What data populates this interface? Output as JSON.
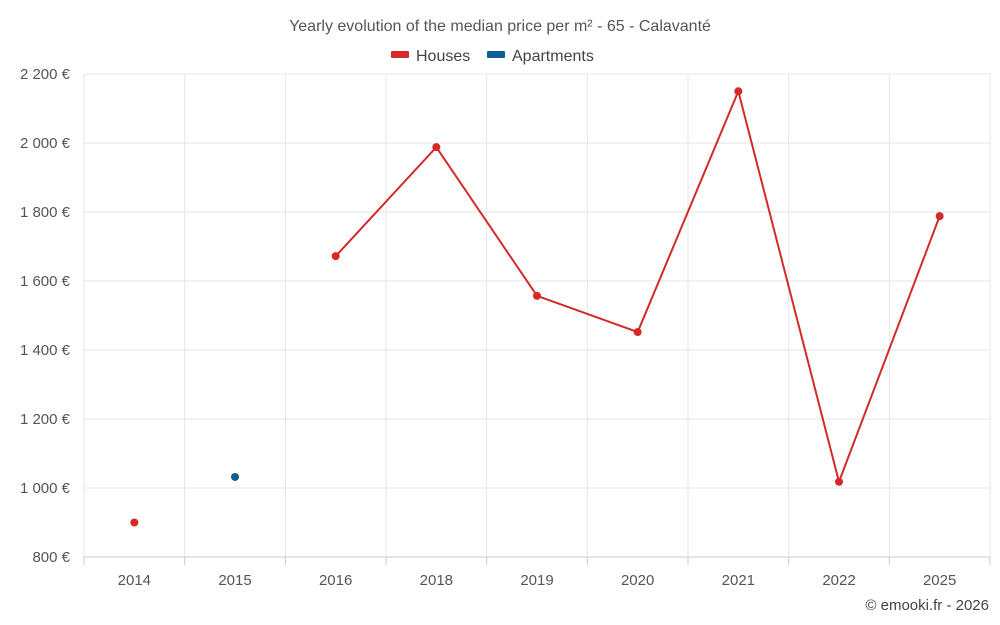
{
  "chart_data": {
    "type": "line",
    "title": "Yearly evolution of the median price per m² - 65 - Calavanté",
    "categories": [
      "2014",
      "2015",
      "2016",
      "2018",
      "2019",
      "2020",
      "2021",
      "2022",
      "2025"
    ],
    "series": [
      {
        "name": "Houses",
        "color": "#d42a2a",
        "values": [
          900,
          null,
          1672,
          1988,
          1557,
          1452,
          2150,
          1018,
          1788
        ]
      },
      {
        "name": "Apartments",
        "color": "#0b5f95",
        "values": [
          null,
          1032,
          null,
          null,
          null,
          null,
          null,
          null,
          null
        ]
      }
    ],
    "ylim": [
      800,
      2200
    ],
    "yticks": [
      800,
      1000,
      1200,
      1400,
      1600,
      1800,
      2000,
      2200
    ],
    "ytick_labels": [
      "800 €",
      "1 000 €",
      "1 200 €",
      "1 400 €",
      "1 600 €",
      "1 800 €",
      "2 000 €",
      "2 200 €"
    ],
    "xlabel": "",
    "ylabel": "",
    "legend_position": "top-center",
    "grid": true
  },
  "credit": "© emooki.fr - 2026"
}
